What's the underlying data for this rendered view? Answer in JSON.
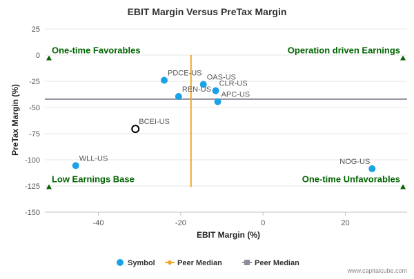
{
  "colors": {
    "point": "#1aa1e6",
    "highlight_stroke": "#000000",
    "peer_median_x": "#f5a623",
    "peer_median_y": "#8c8f99",
    "quadrant_label": "#006400",
    "grid": "#e6e6e6",
    "tick_text": "#555555",
    "point_label": "#555555",
    "credit": "#888888"
  },
  "chart_data": {
    "type": "scatter",
    "title": "EBIT Margin Versus PreTax Margin",
    "xlabel": "EBIT Margin (%)",
    "ylabel": "PreTax Margin (%)",
    "xlim": [
      -53,
      35
    ],
    "ylim": [
      -150,
      25
    ],
    "x_ticks": [
      -40,
      -20,
      0,
      20
    ],
    "y_ticks": [
      25,
      0,
      -25,
      -50,
      -75,
      -100,
      -125,
      -150
    ],
    "grid": "horizontal",
    "legend_position": "bottom",
    "points": [
      {
        "label": "PDCE-US",
        "x": -24,
        "y": -24,
        "highlight": false
      },
      {
        "label": "OAS-US",
        "x": -14.5,
        "y": -28,
        "highlight": false
      },
      {
        "label": "CLR-US",
        "x": -11.5,
        "y": -34,
        "highlight": false
      },
      {
        "label": "REN-US",
        "x": -20.5,
        "y": -39.5,
        "highlight": false
      },
      {
        "label": "APC-US",
        "x": -11,
        "y": -44.5,
        "highlight": false
      },
      {
        "label": "BCEI-US",
        "x": -31,
        "y": -70.5,
        "highlight": true
      },
      {
        "label": "WLL-US",
        "x": -45.5,
        "y": -105.5,
        "highlight": false
      },
      {
        "label": "NOG-US",
        "x": 26.5,
        "y": -108.5,
        "highlight": false
      }
    ],
    "peer_median_x": {
      "name": "Peer Median",
      "value": -17.5,
      "y_range": [
        -126,
        0
      ]
    },
    "peer_median_y": {
      "name": "Peer Median",
      "value": -42,
      "x_range": [
        -53,
        35
      ]
    },
    "quadrants": [
      {
        "label": "One-time Favorables",
        "marker_x": -52,
        "marker_y": -3,
        "align": "start"
      },
      {
        "label": "Operation driven Earnings",
        "marker_x": 34,
        "marker_y": -3,
        "align": "end"
      },
      {
        "label": "Low Earnings Base",
        "marker_x": -52,
        "marker_y": -126,
        "align": "start"
      },
      {
        "label": "One-time Unfavorables",
        "marker_x": 34,
        "marker_y": -126,
        "align": "end"
      }
    ],
    "legend": [
      {
        "name": "Symbol",
        "kind": "dot"
      },
      {
        "name": "Peer Median",
        "kind": "line-orange"
      },
      {
        "name": "Peer Median",
        "kind": "line-gray"
      }
    ],
    "credit": "www.capitalcube.com"
  }
}
